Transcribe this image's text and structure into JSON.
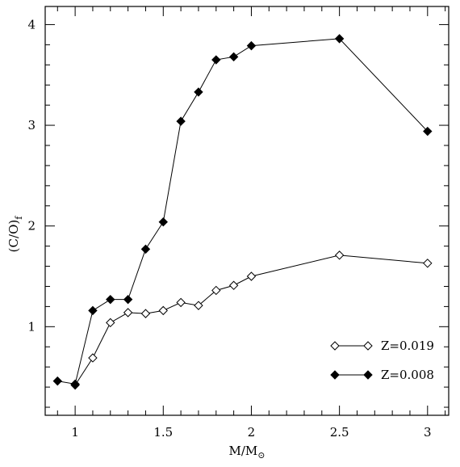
{
  "chart_data": {
    "type": "line",
    "title": "",
    "xlabel": "M/M",
    "xlabel_symbol": "⊙",
    "ylabel": "(C/O)",
    "ylabel_subscript": "f",
    "xlim": [
      0.83,
      3.12
    ],
    "ylim": [
      0.12,
      4.18
    ],
    "xticks": [
      1,
      1.5,
      2,
      2.5,
      3
    ],
    "xtick_labels": [
      "1",
      "1.5",
      "2",
      "2.5",
      "3"
    ],
    "yticks": [
      1,
      2,
      3,
      4
    ],
    "ytick_labels": [
      "1",
      "2",
      "3",
      "4"
    ],
    "x_minor_step": 0.1,
    "y_minor_step": 0.2,
    "grid": false,
    "legend_position": "bottom-right",
    "series": [
      {
        "name": "Z=0.019",
        "marker": "open-diamond",
        "color": "#000000",
        "x": [
          1.0,
          1.1,
          1.2,
          1.3,
          1.4,
          1.5,
          1.6,
          1.7,
          1.8,
          1.9,
          2.0,
          2.5,
          3.0
        ],
        "y": [
          0.42,
          0.69,
          1.04,
          1.14,
          1.13,
          1.16,
          1.24,
          1.21,
          1.36,
          1.41,
          1.5,
          1.71,
          1.63
        ]
      },
      {
        "name": "Z=0.008",
        "marker": "filled-diamond",
        "color": "#000000",
        "x": [
          0.9,
          1.0,
          1.1,
          1.2,
          1.3,
          1.4,
          1.5,
          1.6,
          1.7,
          1.8,
          1.9,
          2.0,
          2.5,
          3.0
        ],
        "y": [
          0.46,
          0.43,
          1.16,
          1.27,
          1.27,
          1.77,
          2.04,
          3.04,
          3.33,
          3.65,
          3.68,
          3.79,
          3.86,
          2.94
        ]
      }
    ]
  }
}
